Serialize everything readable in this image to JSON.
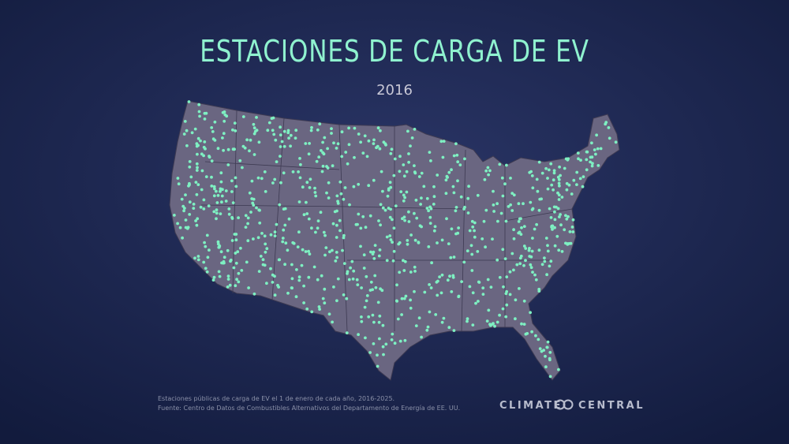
{
  "header": {
    "title": "ESTACIONES DE CARGA DE EV",
    "year": "2016"
  },
  "footer": {
    "notes": [
      "Estaciones públicas de carga de EV el 1 de enero de cada año, 2016-2025.",
      "Fuente: Centro de Datos de Combustibles Alternativos del Departamento de Energía de EE. UU."
    ],
    "logo": {
      "left": "CLIMATE",
      "right": "CENTRAL"
    }
  }
}
